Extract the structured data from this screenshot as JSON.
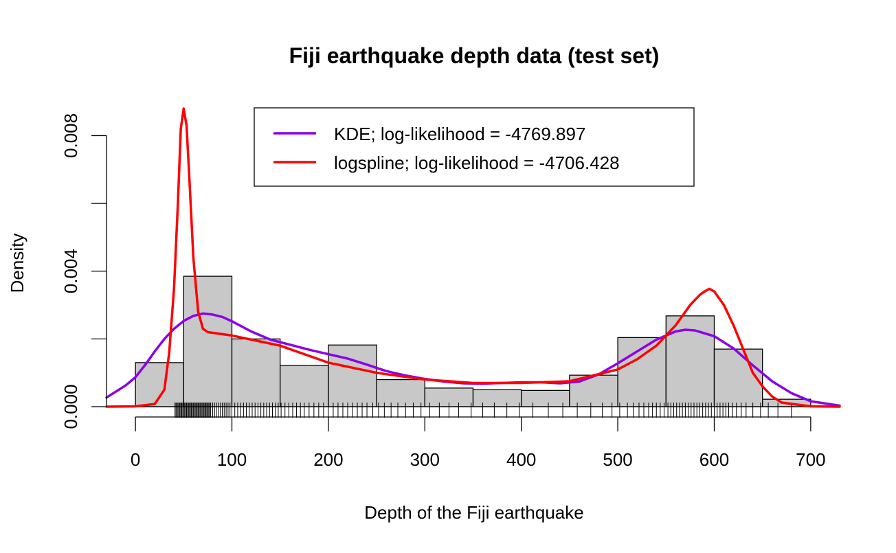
{
  "chart_data": {
    "type": "histogram",
    "title": "Fiji earthquake depth data (test set)",
    "xlabel": "Depth of the Fiji earthquake",
    "ylabel": "Density",
    "xlim": [
      -30,
      730
    ],
    "ylim": [
      0,
      0.0088
    ],
    "x_ticks": [
      0,
      100,
      200,
      300,
      400,
      500,
      600,
      700
    ],
    "x_tick_labels": [
      "0",
      "100",
      "200",
      "300",
      "400",
      "500",
      "600",
      "700"
    ],
    "y_ticks": [
      0,
      0.002,
      0.004,
      0.006,
      0.008
    ],
    "y_tick_labels": [
      "0.000",
      "",
      "0.004",
      "",
      "0.008"
    ],
    "bars": [
      {
        "x0": 0,
        "x1": 50,
        "density": 0.0013
      },
      {
        "x0": 50,
        "x1": 100,
        "density": 0.00385
      },
      {
        "x0": 100,
        "x1": 150,
        "density": 0.002
      },
      {
        "x0": 150,
        "x1": 200,
        "density": 0.00122
      },
      {
        "x0": 200,
        "x1": 250,
        "density": 0.00182
      },
      {
        "x0": 250,
        "x1": 300,
        "density": 0.0008
      },
      {
        "x0": 300,
        "x1": 350,
        "density": 0.00055
      },
      {
        "x0": 350,
        "x1": 400,
        "density": 0.0005
      },
      {
        "x0": 400,
        "x1": 450,
        "density": 0.00048
      },
      {
        "x0": 450,
        "x1": 500,
        "density": 0.00093
      },
      {
        "x0": 500,
        "x1": 550,
        "density": 0.00204
      },
      {
        "x0": 550,
        "x1": 600,
        "density": 0.00268
      },
      {
        "x0": 600,
        "x1": 650,
        "density": 0.0017
      },
      {
        "x0": 650,
        "x1": 700,
        "density": 0.00022
      }
    ],
    "bar_color": "#c8c8c8",
    "series": [
      {
        "name": "KDE; log-likelihood = -4769.897",
        "color": "#8b00e8",
        "x": [
          -30,
          -10,
          0,
          10,
          20,
          30,
          40,
          50,
          60,
          70,
          80,
          90,
          100,
          120,
          140,
          160,
          180,
          200,
          220,
          240,
          260,
          280,
          300,
          320,
          340,
          360,
          380,
          400,
          420,
          440,
          460,
          480,
          500,
          520,
          540,
          560,
          570,
          580,
          600,
          620,
          640,
          660,
          680,
          700,
          730
        ],
        "y": [
          0.00027,
          0.00063,
          0.00087,
          0.00123,
          0.00163,
          0.002,
          0.0023,
          0.00253,
          0.00268,
          0.00275,
          0.00272,
          0.00265,
          0.00252,
          0.00222,
          0.00198,
          0.00183,
          0.00168,
          0.00155,
          0.00142,
          0.00124,
          0.00105,
          0.00092,
          0.00082,
          0.00074,
          0.00069,
          0.00068,
          0.0007,
          0.00072,
          0.00072,
          0.00069,
          0.00074,
          0.00095,
          0.00128,
          0.00163,
          0.00198,
          0.00222,
          0.00227,
          0.00225,
          0.00208,
          0.00172,
          0.00122,
          0.00075,
          0.0004,
          0.00016,
          3e-05
        ]
      },
      {
        "name": "logspline; log-likelihood = -4706.428",
        "color": "#ff0000",
        "x": [
          -30,
          0,
          20,
          30,
          35,
          40,
          44,
          47,
          50,
          53,
          56,
          60,
          65,
          70,
          75,
          100,
          150,
          200,
          250,
          300,
          350,
          400,
          450,
          500,
          520,
          540,
          560,
          575,
          585,
          590,
          595,
          600,
          610,
          620,
          630,
          640,
          650,
          660,
          670,
          700,
          730
        ],
        "y": [
          0,
          1e-05,
          8e-05,
          0.0005,
          0.0016,
          0.0035,
          0.006,
          0.0082,
          0.0088,
          0.0083,
          0.0067,
          0.0044,
          0.0028,
          0.0023,
          0.0022,
          0.0021,
          0.0018,
          0.0013,
          0.001,
          0.0008,
          0.0007,
          0.0007,
          0.00075,
          0.0011,
          0.0014,
          0.0018,
          0.0024,
          0.003,
          0.0033,
          0.0034,
          0.00348,
          0.0034,
          0.003,
          0.0024,
          0.0017,
          0.001,
          0.0006,
          0.0003,
          0.00012,
          1e-05,
          0
        ]
      }
    ],
    "rug": [
      41,
      42,
      43,
      44,
      45,
      46,
      47,
      48,
      49,
      50,
      51,
      52,
      53,
      54,
      55,
      56,
      57,
      58,
      59,
      60,
      61,
      62,
      63,
      64,
      65,
      66,
      67,
      68,
      69,
      70,
      71,
      72,
      73,
      74,
      75,
      76,
      77,
      78,
      80,
      82,
      84,
      86,
      88,
      90,
      92,
      94,
      96,
      98,
      100,
      103,
      106,
      109,
      112,
      115,
      118,
      121,
      124,
      127,
      130,
      133,
      136,
      139,
      142,
      145,
      148,
      151,
      155,
      159,
      163,
      167,
      171,
      175,
      180,
      185,
      190,
      195,
      200,
      205,
      210,
      215,
      220,
      225,
      230,
      235,
      240,
      246,
      252,
      258,
      265,
      272,
      280,
      288,
      296,
      305,
      315,
      325,
      335,
      348,
      360,
      372,
      385,
      398,
      412,
      428,
      443,
      458,
      472,
      484,
      494,
      502,
      510,
      516,
      522,
      527,
      532,
      536,
      540,
      544,
      548,
      552,
      555,
      558,
      561,
      564,
      567,
      570,
      573,
      576,
      579,
      582,
      585,
      588,
      591,
      594,
      597,
      600,
      603,
      606,
      609,
      612,
      615,
      619,
      623,
      628,
      633,
      640,
      648,
      656,
      666,
      680
    ],
    "legend": {
      "position": "top-center",
      "box": true
    }
  }
}
